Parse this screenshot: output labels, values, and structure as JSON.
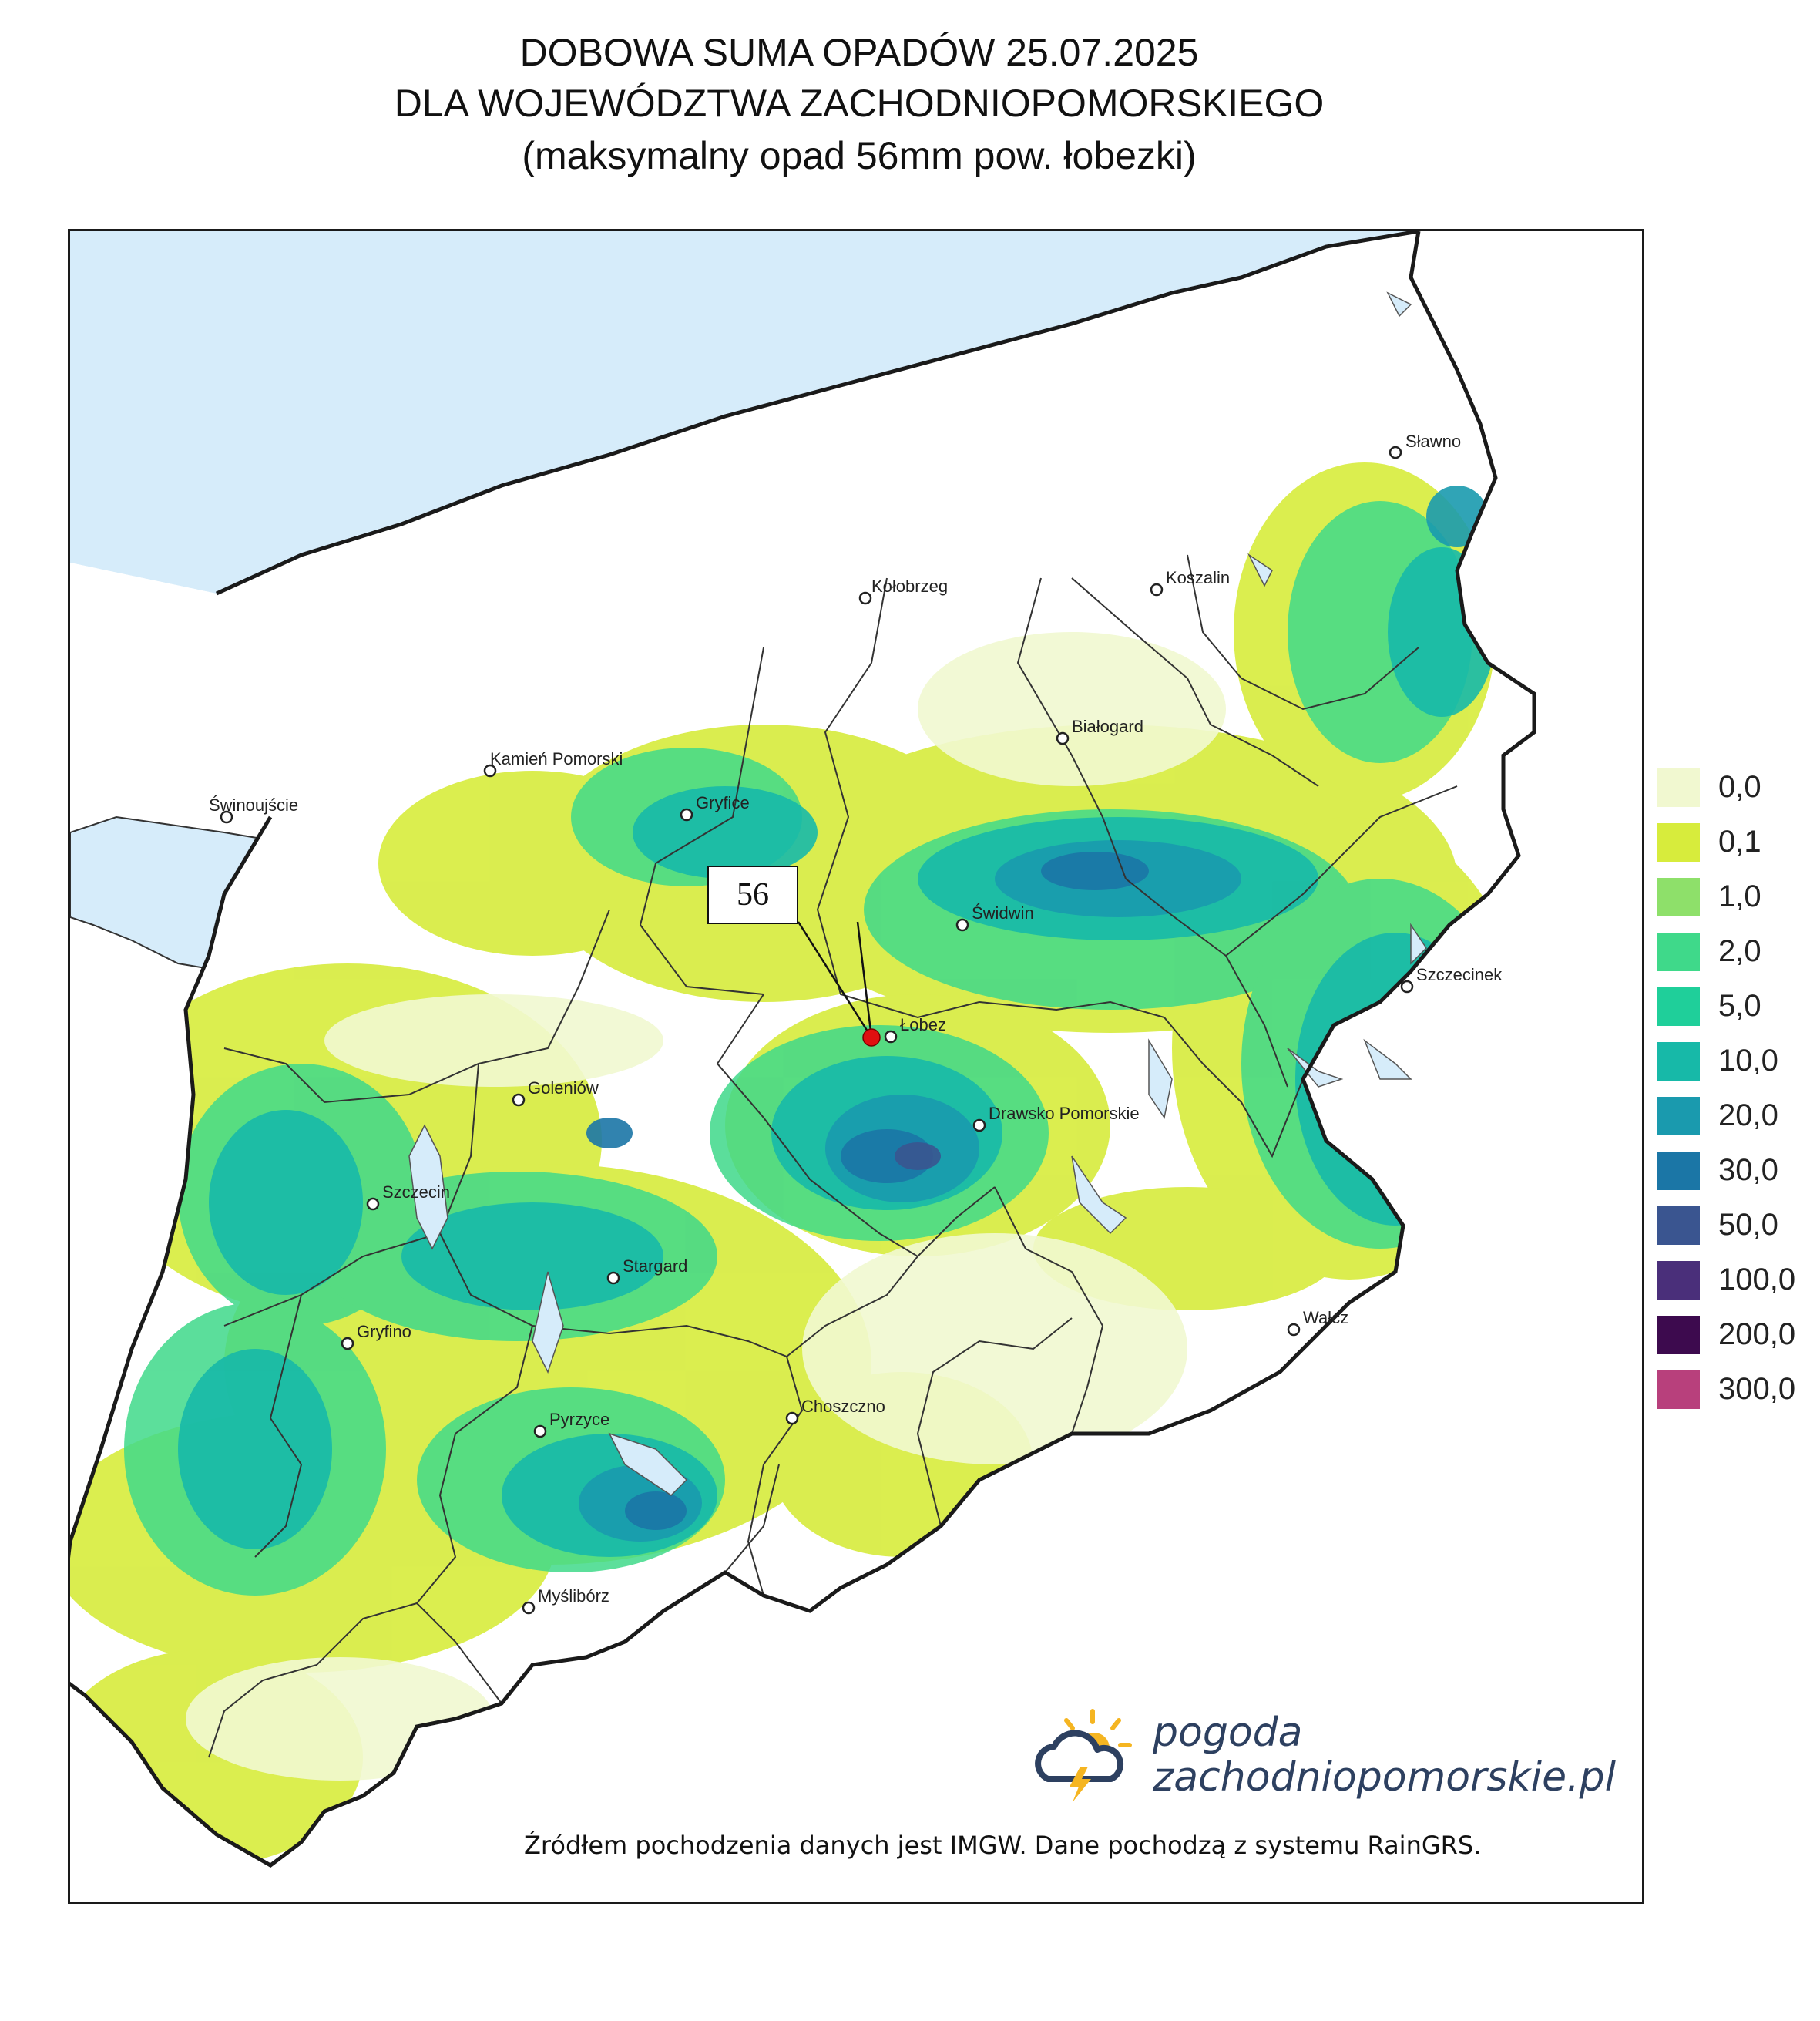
{
  "title": {
    "line1": "DOBOWA SUMA OPADÓW 25.07.2025",
    "line2": "DLA WOJEWÓDZTWA ZACHODNIOPOMORSKIEGO",
    "line3": "(maksymalny opad 56mm pow. łobezki)"
  },
  "callout": {
    "value": "56"
  },
  "cities": [
    {
      "name": "Sławno"
    },
    {
      "name": "Kołobrzeg"
    },
    {
      "name": "Koszalin"
    },
    {
      "name": "Białogard"
    },
    {
      "name": "Kamień Pomorski"
    },
    {
      "name": "Gryfice"
    },
    {
      "name": "Świnoujście"
    },
    {
      "name": "Świdwin"
    },
    {
      "name": "Szczecinek"
    },
    {
      "name": "Łobez"
    },
    {
      "name": "Goleniów"
    },
    {
      "name": "Drawsko Pomorskie"
    },
    {
      "name": "Szczecin"
    },
    {
      "name": "Stargard"
    },
    {
      "name": "Gryfino"
    },
    {
      "name": "Wałcz"
    },
    {
      "name": "Choszczno"
    },
    {
      "name": "Pyrzyce"
    },
    {
      "name": "Myślibórz"
    }
  ],
  "legend": [
    {
      "label": "0,0",
      "color": "#f1f8d0"
    },
    {
      "label": "0,1",
      "color": "#d7ec3c"
    },
    {
      "label": "1,0",
      "color": "#8ee06a"
    },
    {
      "label": "2,0",
      "color": "#3fd98a"
    },
    {
      "label": "5,0",
      "color": "#1fcf9a"
    },
    {
      "label": "10,0",
      "color": "#17b9a8"
    },
    {
      "label": "20,0",
      "color": "#1a9aae"
    },
    {
      "label": "30,0",
      "color": "#1b76a6"
    },
    {
      "label": "50,0",
      "color": "#3a5590"
    },
    {
      "label": "100,0",
      "color": "#4a2f7a"
    },
    {
      "label": "200,0",
      "color": "#3d0a4e"
    },
    {
      "label": "300,0",
      "color": "#b8407c"
    }
  ],
  "brand": {
    "line1": "pogoda",
    "line2": "zachodniopomorskie.pl"
  },
  "source": "Źródłem pochodzenia danych jest IMGW. Dane pochodzą z systemu RainGRS."
}
